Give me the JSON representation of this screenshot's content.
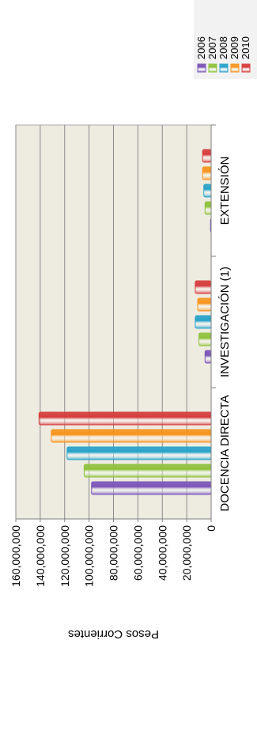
{
  "chart_data": {
    "type": "bar",
    "orientation": "vertical-rotated",
    "title": "",
    "xlabel": "",
    "ylabel": "Pesos Corrientes",
    "ylim": [
      0,
      160000000
    ],
    "yticks": [
      0,
      20000000,
      40000000,
      60000000,
      80000000,
      100000000,
      120000000,
      140000000,
      160000000
    ],
    "ytick_labels": [
      "0",
      "20,000,000",
      "40,000,000",
      "60,000,000",
      "80,000,000",
      "100,000,000",
      "120,000,000",
      "140,000,000",
      "160,000,000"
    ],
    "categories": [
      "DOCENCIA DIRECTA",
      "INVESTIGACIÓN (1)",
      "EXTENSIÓN"
    ],
    "series": [
      {
        "name": "2006",
        "color": "#7b55b8",
        "values": [
          98000000,
          5000000,
          500000
        ]
      },
      {
        "name": "2007",
        "color": "#8fc13c",
        "values": [
          104000000,
          10000000,
          5000000
        ]
      },
      {
        "name": "2008",
        "color": "#27a3c9",
        "values": [
          118000000,
          13000000,
          6000000
        ]
      },
      {
        "name": "2009",
        "color": "#f7941d",
        "values": [
          131000000,
          11000000,
          7000000
        ]
      },
      {
        "name": "2010",
        "color": "#d63c3c",
        "values": [
          141000000,
          13000000,
          7000000
        ]
      }
    ],
    "grid": true,
    "legend_position": "top-right",
    "plot_background": "#eeece1"
  }
}
